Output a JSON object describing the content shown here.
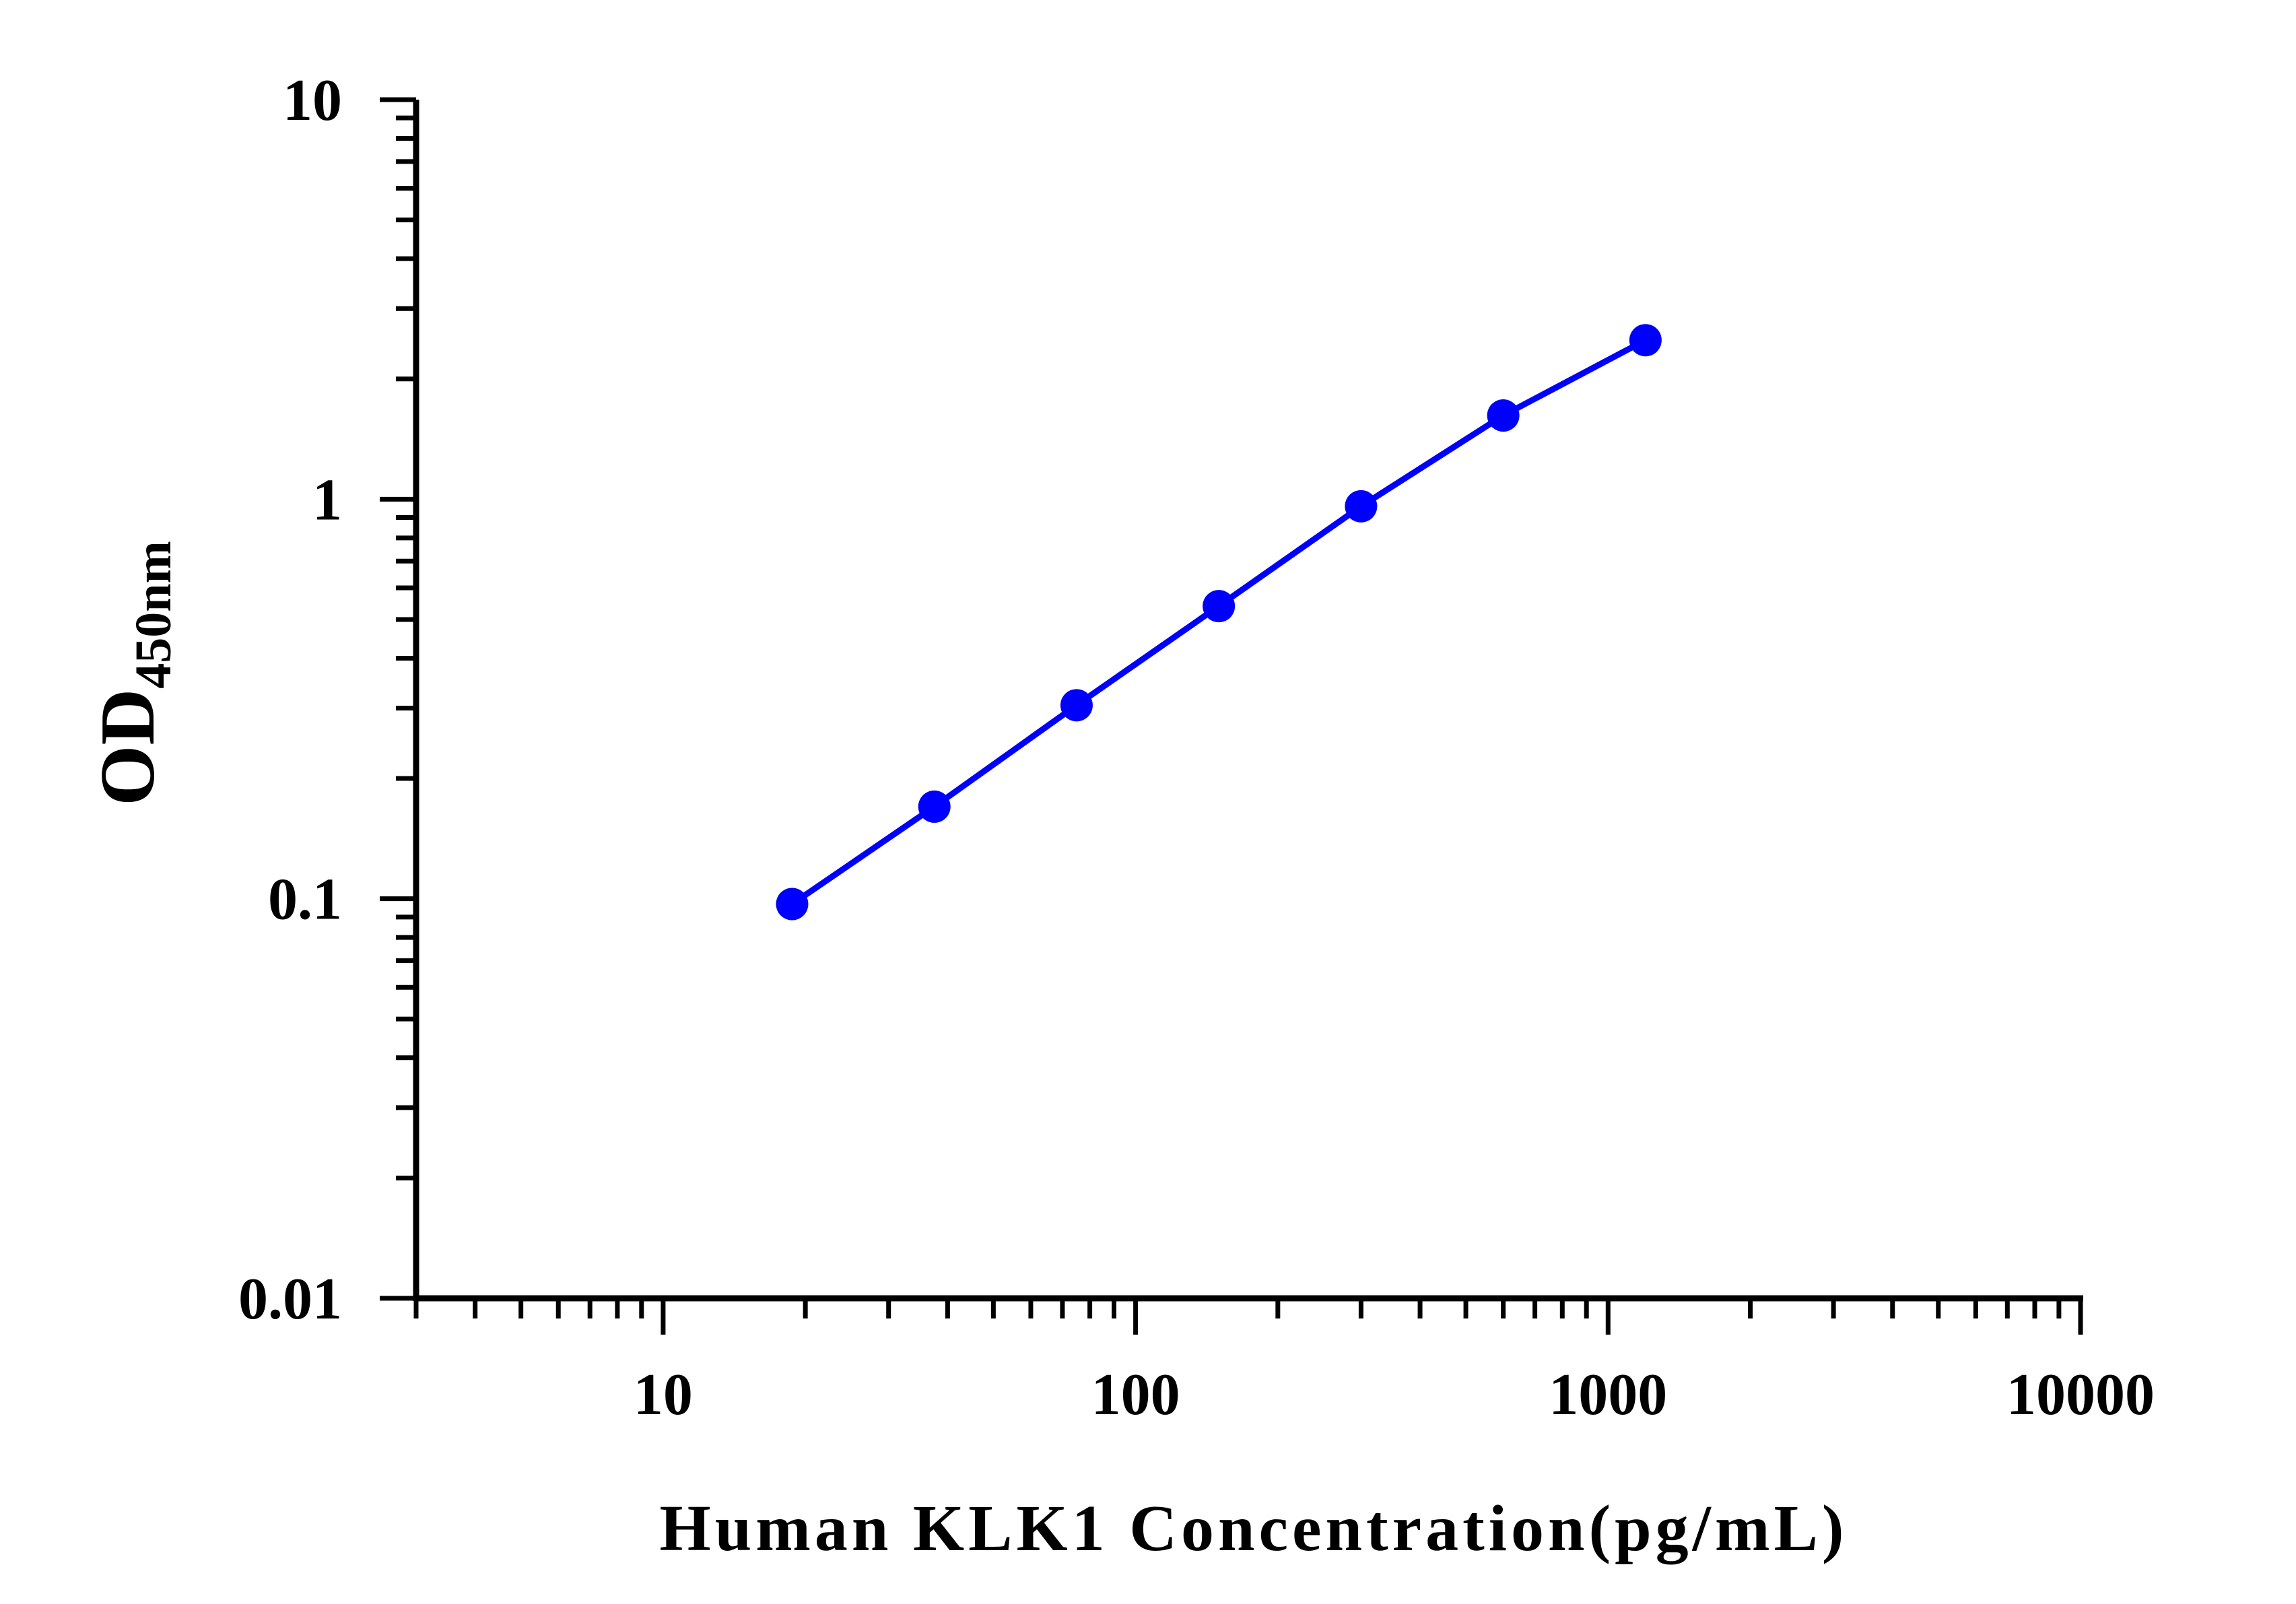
{
  "chart_data": {
    "type": "line",
    "title": "",
    "xlabel": "Human KLK1 Concentration(pg/mL)",
    "ylabel": {
      "main": "OD",
      "subscript": "450nm"
    },
    "x_scale": "log",
    "y_scale": "log",
    "xlim": [
      3,
      10000
    ],
    "ylim": [
      0.01,
      10
    ],
    "x_ticks": [
      "10",
      "100",
      "1000",
      "10000"
    ],
    "y_ticks": [
      "0.01",
      "0.1",
      "1",
      "10"
    ],
    "grid": false,
    "legend": "none",
    "series": [
      {
        "color": "#0000FF",
        "x": [
          18.75,
          37.5,
          75,
          150,
          300,
          600,
          1200
        ],
        "y": [
          0.097,
          0.17,
          0.305,
          0.54,
          0.96,
          1.62,
          2.5
        ]
      }
    ]
  }
}
